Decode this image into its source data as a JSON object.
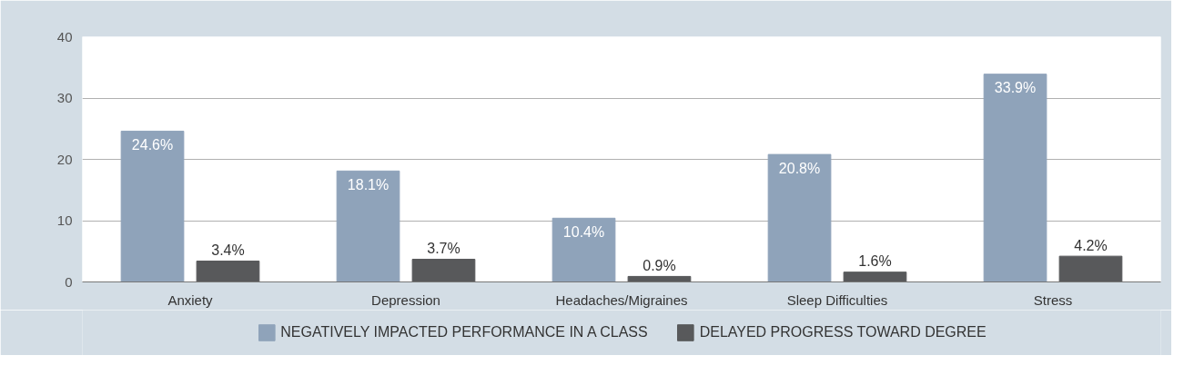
{
  "chart_data": {
    "type": "bar",
    "categories": [
      "Anxiety",
      "Depression",
      "Headaches/Migraines",
      "Sleep Difficulties",
      "Stress"
    ],
    "series": [
      {
        "name": "NEGATIVELY IMPACTED PERFORMANCE IN A CLASS",
        "color": "#8fa3ba",
        "values": [
          24.6,
          18.1,
          10.4,
          20.8,
          33.9
        ],
        "value_labels": [
          "24.6%",
          "18.1%",
          "10.4%",
          "20.8%",
          "33.9%"
        ]
      },
      {
        "name": "DELAYED PROGRESS TOWARD DEGREE",
        "color": "#58595b",
        "values": [
          3.4,
          3.7,
          0.9,
          1.6,
          4.2
        ],
        "value_labels": [
          "3.4%",
          "3.7%",
          "0.9%",
          "1.6%",
          "4.2%"
        ]
      }
    ],
    "ylim": [
      0,
      40
    ],
    "yticks": [
      0,
      10,
      20,
      30,
      40
    ],
    "grid": "y",
    "legend": "bottom"
  }
}
